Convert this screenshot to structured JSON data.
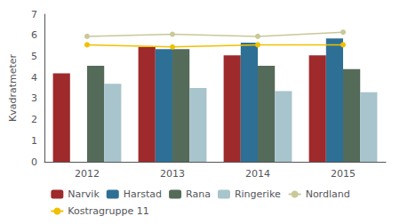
{
  "chart_data": {
    "type": "bar",
    "categories": [
      "2012",
      "2013",
      "2014",
      "2015"
    ],
    "series": [
      {
        "name": "Narvik",
        "type": "bar",
        "color": "#9e2a2b",
        "values": [
          4.2,
          5.45,
          5.05,
          5.05
        ]
      },
      {
        "name": "Harstad",
        "type": "bar",
        "color": "#2e7095",
        "values": [
          null,
          5.35,
          5.65,
          5.85
        ]
      },
      {
        "name": "Rana",
        "type": "bar",
        "color": "#556b5a",
        "values": [
          4.55,
          5.35,
          4.55,
          4.4
        ]
      },
      {
        "name": "Ringerike",
        "type": "bar",
        "color": "#a8c4cc",
        "values": [
          3.7,
          3.5,
          3.35,
          3.3
        ]
      },
      {
        "name": "Nordland",
        "type": "line",
        "marker": "circle",
        "color": "#c8c89a",
        "values": [
          5.95,
          6.05,
          5.95,
          6.15
        ]
      },
      {
        "name": "Kostragruppe 11",
        "type": "line",
        "marker": "circle",
        "color": "#f0c000",
        "values": [
          5.55,
          5.45,
          5.55,
          5.55
        ]
      }
    ],
    "ylabel": "Kvadratmeter",
    "ylim": [
      0,
      7
    ],
    "yticks": [
      0,
      1,
      2,
      3,
      4,
      5,
      6,
      7
    ],
    "grid": false,
    "legend": "bottom"
  }
}
